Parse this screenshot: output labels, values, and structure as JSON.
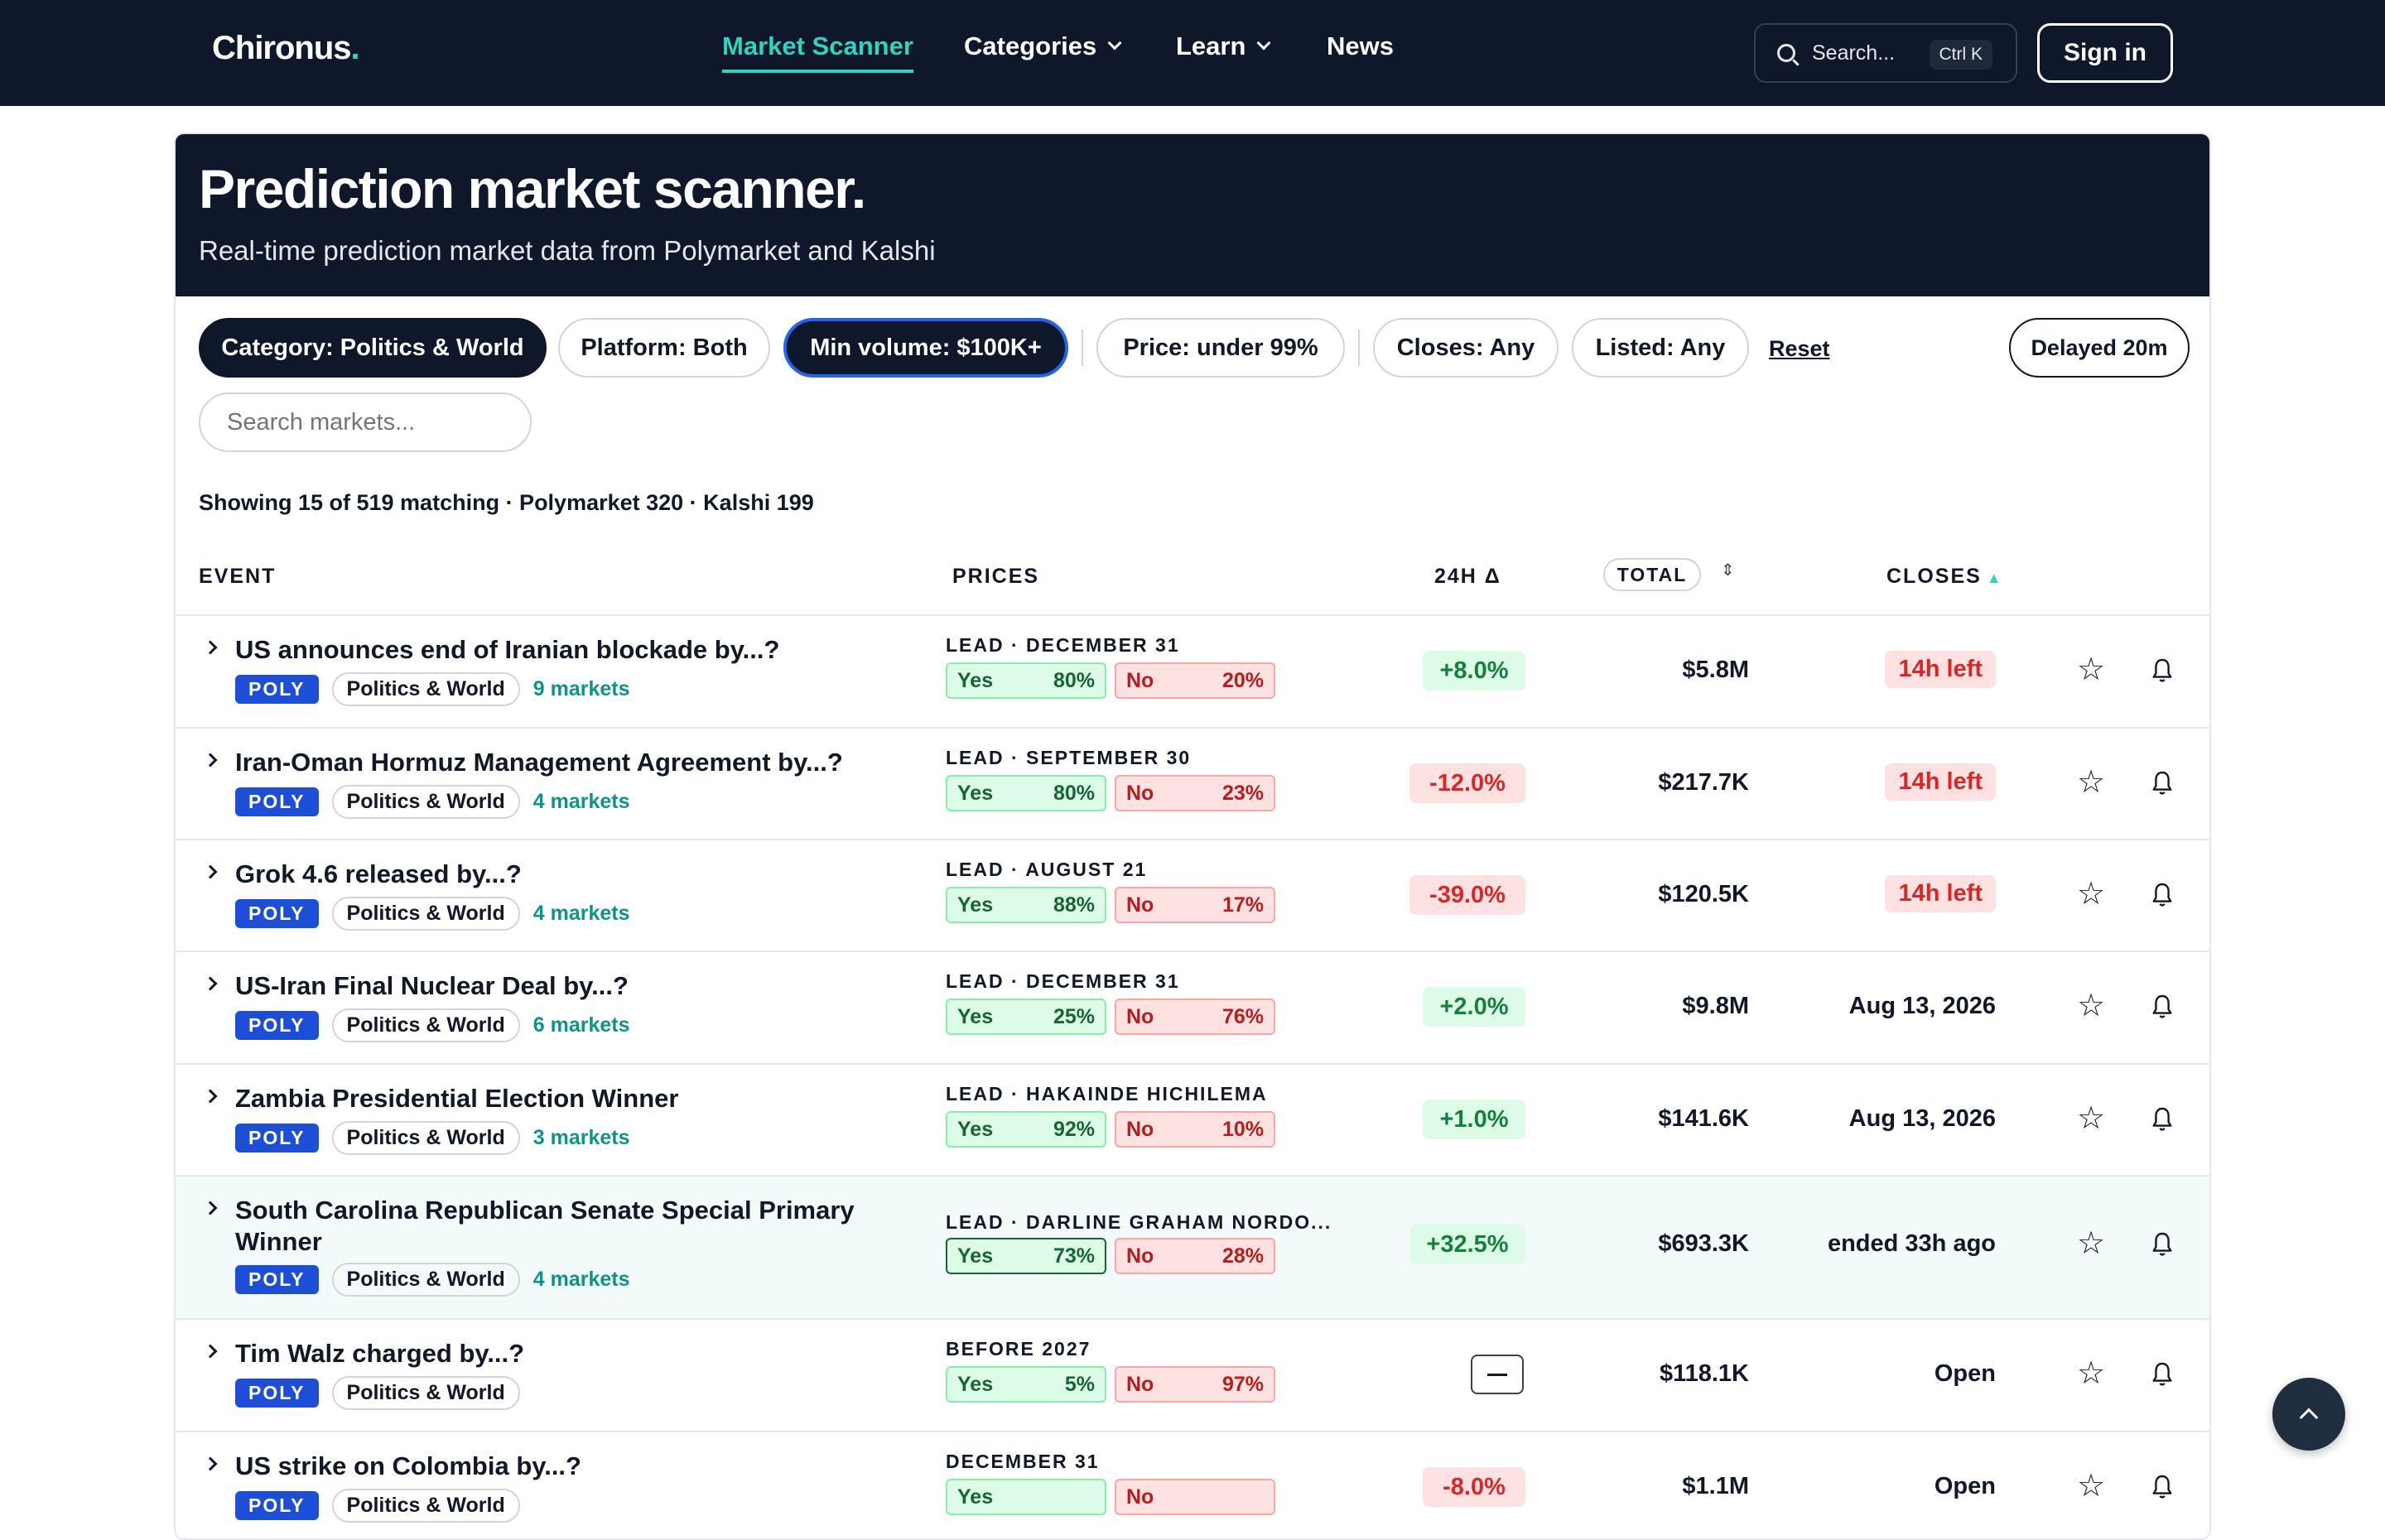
{
  "nav": {
    "logo": "Chironus",
    "logo_dot": ".",
    "links": [
      {
        "label": "Market Scanner"
      },
      {
        "label": "Categories"
      },
      {
        "label": "Learn"
      },
      {
        "label": "News"
      }
    ],
    "search_label": "Search...",
    "search_shortcut": "Ctrl K",
    "signin": "Sign in"
  },
  "hero": {
    "title": "Prediction market scanner.",
    "subtitle": "Real-time prediction market data from Polymarket and Kalshi"
  },
  "filters": {
    "category": "Category: Politics & World",
    "platform": "Platform: Both",
    "min_volume": "Min volume: $100K+",
    "price": "Price: under 99%",
    "closes": "Closes: Any",
    "listed": "Listed: Any",
    "reset": "Reset",
    "delayed": "Delayed 20m",
    "search_placeholder": "Search markets..."
  },
  "summary": "Showing 15 of 519 matching · Polymarket 320 · Kalshi 199",
  "table": {
    "headers": {
      "event": "EVENT",
      "prices": "PRICES",
      "delta": "24H Δ",
      "total": "TOTAL",
      "closes": "CLOSES"
    },
    "rows": [
      {
        "title": "US announces end of Iranian blockade by...?",
        "platform": "POLY",
        "category": "Politics & World",
        "markets": "9 markets",
        "lead": "LEAD · DECEMBER 31",
        "yes_label": "Yes",
        "yes": "80%",
        "no_label": "No",
        "no": "20%",
        "delta": "+8.0%",
        "delta_dir": "up",
        "total": "$5.8M",
        "closes": "14h left",
        "urgent": true
      },
      {
        "title": "Iran-Oman Hormuz Management Agreement by...?",
        "platform": "POLY",
        "category": "Politics & World",
        "markets": "4 markets",
        "lead": "LEAD · SEPTEMBER 30",
        "yes_label": "Yes",
        "yes": "80%",
        "no_label": "No",
        "no": "23%",
        "delta": "-12.0%",
        "delta_dir": "down",
        "total": "$217.7K",
        "closes": "14h left",
        "urgent": true
      },
      {
        "title": "Grok 4.6 released by...?",
        "platform": "POLY",
        "category": "Politics & World",
        "markets": "4 markets",
        "lead": "LEAD · AUGUST 21",
        "yes_label": "Yes",
        "yes": "88%",
        "no_label": "No",
        "no": "17%",
        "delta": "-39.0%",
        "delta_dir": "down",
        "total": "$120.5K",
        "closes": "14h left",
        "urgent": true
      },
      {
        "title": "US-Iran Final Nuclear Deal by...?",
        "platform": "POLY",
        "category": "Politics & World",
        "markets": "6 markets",
        "lead": "LEAD · DECEMBER 31",
        "yes_label": "Yes",
        "yes": "25%",
        "no_label": "No",
        "no": "76%",
        "delta": "+2.0%",
        "delta_dir": "up",
        "total": "$9.8M",
        "closes": "Aug 13, 2026",
        "urgent": false
      },
      {
        "title": "Zambia Presidential Election Winner",
        "platform": "POLY",
        "category": "Politics & World",
        "markets": "3 markets",
        "lead": "LEAD · HAKAINDE HICHILEMA",
        "yes_label": "Yes",
        "yes": "92%",
        "no_label": "No",
        "no": "10%",
        "delta": "+1.0%",
        "delta_dir": "up",
        "total": "$141.6K",
        "closes": "Aug 13, 2026",
        "urgent": false
      },
      {
        "title": "South Carolina Republican Senate Special Primary Winner",
        "platform": "POLY",
        "category": "Politics & World",
        "markets": "4 markets",
        "lead": "LEAD · DARLINE GRAHAM NORDO...",
        "yes_label": "Yes",
        "yes": "73%",
        "no_label": "No",
        "no": "28%",
        "delta": "+32.5%",
        "delta_dir": "up",
        "total": "$693.3K",
        "closes": "ended 33h ago",
        "urgent": false
      },
      {
        "title": "Tim Walz charged by...?",
        "platform": "POLY",
        "category": "Politics & World",
        "markets": "",
        "lead": "BEFORE 2027",
        "yes_label": "Yes",
        "yes": "5%",
        "no_label": "No",
        "no": "97%",
        "delta": "",
        "delta_dir": "none",
        "total": "$118.1K",
        "closes": "Open",
        "urgent": false
      },
      {
        "title": "US strike on Colombia by...?",
        "platform": "POLY",
        "category": "Politics & World",
        "markets": "",
        "lead": "DECEMBER 31",
        "yes_label": "Yes",
        "yes": "",
        "no_label": "No",
        "no": "",
        "delta": "-8.0%",
        "delta_dir": "down",
        "total": "$1.1M",
        "closes": "Open",
        "urgent": false
      }
    ]
  },
  "colors": {
    "navy": "#0f172a",
    "teal": "#2dd4bf",
    "poly_blue": "#1d4ed8",
    "yes_green": "#166534",
    "no_red": "#b91c1c"
  }
}
